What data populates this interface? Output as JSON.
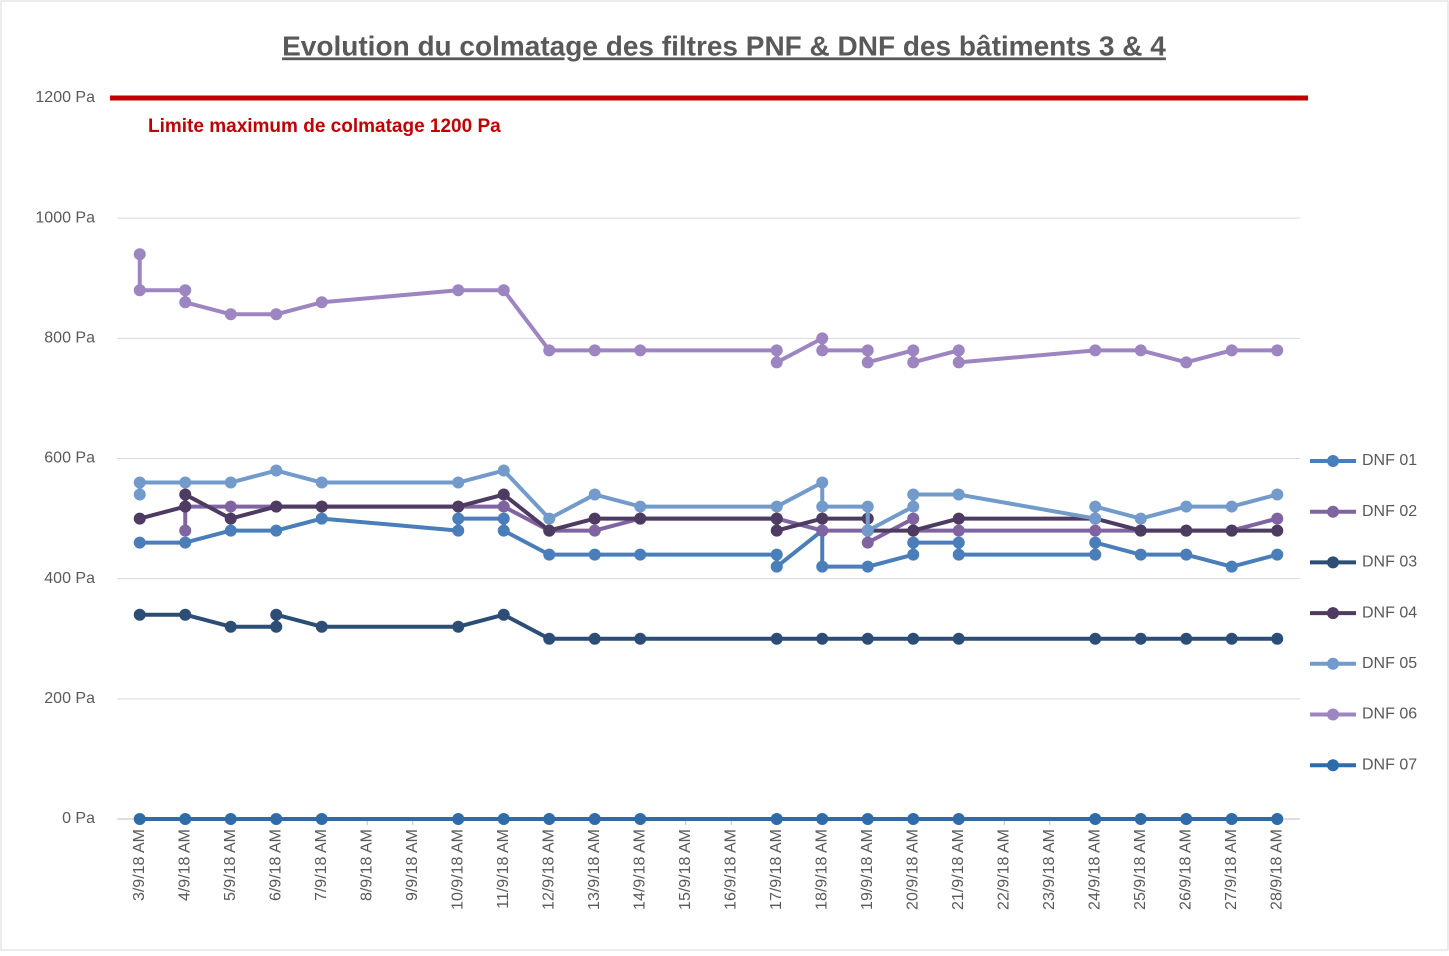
{
  "chart_data": {
    "type": "line",
    "title": "Evolution du colmatage des filtres PNF & DNF des bâtiments 3 & 4",
    "limit": {
      "value": 1200,
      "label": "Limite maximum de colmatage 1200 Pa",
      "color": "#c00000"
    },
    "xlim": [
      2.5,
      28.5
    ],
    "xticks": [
      {
        "value": 3,
        "label": "3/9/18 AM"
      },
      {
        "value": 4,
        "label": "4/9/18 AM"
      },
      {
        "value": 5,
        "label": "5/9/18 AM"
      },
      {
        "value": 6,
        "label": "6/9/18 AM"
      },
      {
        "value": 7,
        "label": "7/9/18 AM"
      },
      {
        "value": 8,
        "label": "8/9/18 AM"
      },
      {
        "value": 9,
        "label": "9/9/18 AM"
      },
      {
        "value": 10,
        "label": "10/9/18 AM"
      },
      {
        "value": 11,
        "label": "11/9/18 AM"
      },
      {
        "value": 12,
        "label": "12/9/18 AM"
      },
      {
        "value": 13,
        "label": "13/9/18 AM"
      },
      {
        "value": 14,
        "label": "14/9/18 AM"
      },
      {
        "value": 15,
        "label": "15/9/18 AM"
      },
      {
        "value": 16,
        "label": "16/9/18 AM"
      },
      {
        "value": 17,
        "label": "17/9/18 AM"
      },
      {
        "value": 18,
        "label": "18/9/18 AM"
      },
      {
        "value": 19,
        "label": "19/9/18 AM"
      },
      {
        "value": 20,
        "label": "20/9/18 AM"
      },
      {
        "value": 21,
        "label": "21/9/18 AM"
      },
      {
        "value": 22,
        "label": "22/9/18 AM"
      },
      {
        "value": 23,
        "label": "23/9/18 AM"
      },
      {
        "value": 24,
        "label": "24/9/18 AM"
      },
      {
        "value": 25,
        "label": "25/9/18 AM"
      },
      {
        "value": 26,
        "label": "26/9/18 AM"
      },
      {
        "value": 27,
        "label": "27/9/18 AM"
      },
      {
        "value": 28,
        "label": "28/9/18 AM"
      }
    ],
    "ylim": [
      0,
      1200
    ],
    "yticks": [
      {
        "value": 0,
        "label": "0 Pa"
      },
      {
        "value": 200,
        "label": "200 Pa"
      },
      {
        "value": 400,
        "label": "400 Pa"
      },
      {
        "value": 600,
        "label": "600 Pa"
      },
      {
        "value": 800,
        "label": "800 Pa"
      },
      {
        "value": 1000,
        "label": "1000 Pa"
      },
      {
        "value": 1200,
        "label": "1200 Pa"
      }
    ],
    "grid": true,
    "legend": "right",
    "series": [
      {
        "name": "DNF 01",
        "color": "#4a7ebb",
        "x": [
          3,
          4,
          5,
          6,
          7,
          10,
          10,
          11,
          11,
          12,
          13,
          14,
          17,
          17,
          18,
          18,
          19,
          20,
          20,
          21,
          21,
          24,
          24,
          25,
          26,
          27,
          28
        ],
        "values": [
          460,
          460,
          480,
          480,
          500,
          480,
          500,
          500,
          480,
          440,
          440,
          440,
          440,
          420,
          480,
          420,
          420,
          440,
          460,
          460,
          440,
          440,
          460,
          440,
          440,
          420,
          440
        ]
      },
      {
        "name": "DNF 02",
        "color": "#8064a2",
        "x": [
          4,
          4,
          5,
          6,
          7,
          10,
          11,
          12,
          13,
          14,
          17,
          18,
          19,
          19,
          20,
          20,
          21,
          24,
          25,
          26,
          27,
          28
        ],
        "values": [
          480,
          520,
          520,
          520,
          520,
          520,
          520,
          480,
          480,
          500,
          500,
          480,
          480,
          460,
          500,
          480,
          480,
          480,
          480,
          480,
          480,
          500
        ]
      },
      {
        "name": "DNF 03",
        "color": "#2c4d75",
        "x": [
          3,
          4,
          5,
          6,
          6,
          7,
          10,
          11,
          12,
          13,
          14,
          17,
          18,
          19,
          20,
          21,
          24,
          25,
          26,
          27,
          28
        ],
        "values": [
          340,
          340,
          320,
          320,
          340,
          320,
          320,
          340,
          300,
          300,
          300,
          300,
          300,
          300,
          300,
          300,
          300,
          300,
          300,
          300,
          300
        ]
      },
      {
        "name": "DNF 04",
        "color": "#4d3b62",
        "x": [
          3,
          4,
          4,
          5,
          6,
          7,
          10,
          11,
          12,
          13,
          14,
          17,
          17,
          18,
          19,
          19,
          20,
          21,
          24,
          25,
          26,
          27,
          28
        ],
        "values": [
          500,
          520,
          540,
          500,
          520,
          520,
          520,
          540,
          480,
          500,
          500,
          500,
          480,
          500,
          500,
          480,
          480,
          500,
          500,
          480,
          480,
          480,
          480
        ]
      },
      {
        "name": "DNF 05",
        "color": "#729aca",
        "x": [
          3,
          3,
          4,
          5,
          6,
          7,
          10,
          11,
          12,
          13,
          14,
          17,
          18,
          18,
          19,
          19,
          20,
          20,
          21,
          24,
          24,
          25,
          26,
          27,
          28
        ],
        "values": [
          540,
          560,
          560,
          560,
          580,
          560,
          560,
          580,
          500,
          540,
          520,
          520,
          560,
          520,
          520,
          480,
          520,
          540,
          540,
          500,
          520,
          500,
          520,
          520,
          540
        ]
      },
      {
        "name": "DNF 06",
        "color": "#9c85c0",
        "x": [
          3,
          3,
          4,
          4,
          5,
          6,
          7,
          10,
          11,
          12,
          13,
          14,
          17,
          17,
          18,
          18,
          19,
          19,
          20,
          20,
          21,
          21,
          24,
          25,
          26,
          27,
          28
        ],
        "values": [
          940,
          880,
          880,
          860,
          840,
          840,
          860,
          880,
          880,
          780,
          780,
          780,
          780,
          760,
          800,
          780,
          780,
          760,
          780,
          760,
          780,
          760,
          780,
          780,
          760,
          780,
          780
        ]
      },
      {
        "name": "DNF 07",
        "color": "#2e6ba8",
        "x": [
          3,
          4,
          5,
          6,
          7,
          10,
          11,
          12,
          13,
          14,
          17,
          18,
          19,
          20,
          21,
          24,
          25,
          26,
          27,
          28
        ],
        "values": [
          0,
          0,
          0,
          0,
          0,
          0,
          0,
          0,
          0,
          0,
          0,
          0,
          0,
          0,
          0,
          0,
          0,
          0,
          0,
          0
        ]
      }
    ]
  }
}
